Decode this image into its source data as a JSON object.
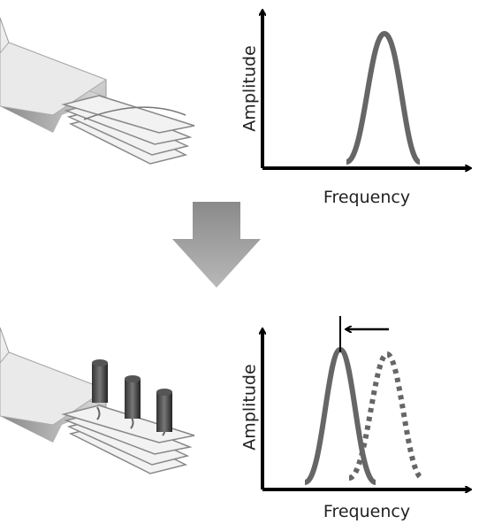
{
  "panels": [
    {
      "y_label": "Amplitude",
      "x_label": "Frequency"
    },
    {
      "y_label": "Amplitude",
      "x_label": "Frequency"
    }
  ]
}
